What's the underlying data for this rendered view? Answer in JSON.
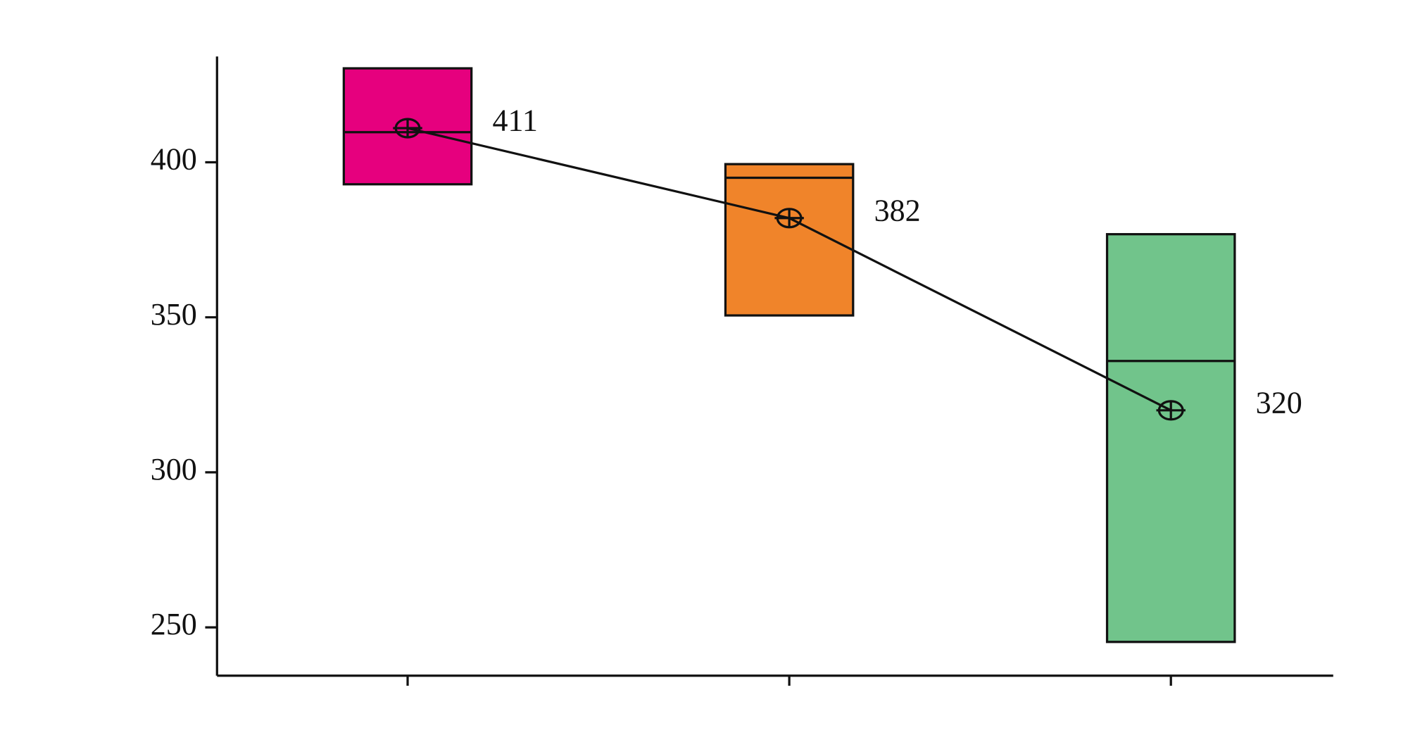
{
  "chart_data": {
    "type": "box",
    "categories": [
      null,
      null,
      null
    ],
    "series": [
      {
        "color": "#e6007e",
        "q1": 392.9,
        "median": 409.7,
        "q3": 430.3,
        "mean": 411
      },
      {
        "color": "#f0842a",
        "q1": 350.6,
        "median": 395.0,
        "q3": 399.4,
        "mean": 382
      },
      {
        "color": "#71c48b",
        "q1": 245.3,
        "median": 335.9,
        "q3": 376.8,
        "mean": 320
      }
    ],
    "ylim": [
      234.4,
      434.1
    ],
    "yticks": [
      250,
      300,
      350,
      400
    ]
  }
}
